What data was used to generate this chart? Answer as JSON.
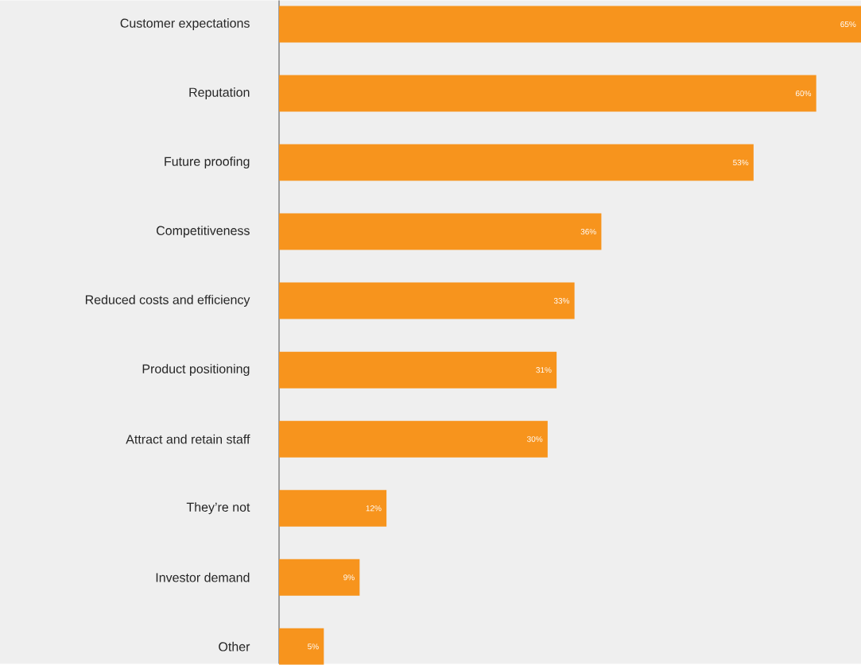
{
  "chart_data": {
    "type": "bar",
    "orientation": "horizontal",
    "color": "#f7941d",
    "categories": [
      "Customer expectations",
      "Reputation",
      "Future proofing",
      "Competitiveness",
      "Reduced costs and efficiency",
      "Product positioning",
      "Attract and retain staff",
      "They’re not",
      "Investor demand",
      "Other"
    ],
    "values": [
      65,
      60,
      53,
      36,
      33,
      31,
      30,
      12,
      9,
      5
    ],
    "value_labels": [
      "65%",
      "60%",
      "53%",
      "36%",
      "33%",
      "31%",
      "30%",
      "12%",
      "9%",
      "5%"
    ]
  }
}
